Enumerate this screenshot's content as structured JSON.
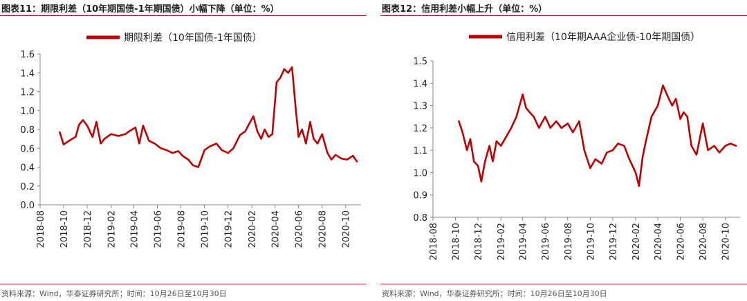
{
  "colors": {
    "line": "#c00000",
    "accent": "#b22222",
    "axis": "#888888"
  },
  "panels": [
    {
      "title": "图表11：期限利差（10年期国债-1年期国债）小幅下降（单位：%）",
      "source": "资料来源：Wind，华泰证券研究所；时间：10月26日至10月30日"
    },
    {
      "title": "图表12：信用利差小幅上升（单位：%）",
      "source": "资料来源：Wind，华泰证券研究所；时间：10月26日至10月30日"
    }
  ],
  "chart_data": [
    {
      "type": "line",
      "title": "",
      "xlabel": "",
      "ylabel": "",
      "x_type": "date",
      "xlim": [
        "2018-08-01",
        "2020-11-10"
      ],
      "ylim": [
        0.0,
        1.6
      ],
      "x_ticks": [
        "2018-08",
        "2018-10",
        "2018-12",
        "2019-02",
        "2019-04",
        "2019-06",
        "2019-08",
        "2019-10",
        "2019-12",
        "2020-02",
        "2020-04",
        "2020-06",
        "2020-08",
        "2020-10"
      ],
      "y_ticks": [
        "0.0",
        "0.2",
        "0.4",
        "0.6",
        "0.8",
        "1.0",
        "1.2",
        "1.4",
        "1.6"
      ],
      "legend_position": "top-center",
      "grid": false,
      "series": [
        {
          "name": "期限利差（10年国债-1年国债）",
          "x": [
            "2018-09-21",
            "2018-10-01",
            "2018-10-15",
            "2018-11-01",
            "2018-11-10",
            "2018-11-20",
            "2018-12-01",
            "2018-12-15",
            "2018-12-25",
            "2019-01-05",
            "2019-01-15",
            "2019-02-01",
            "2019-02-20",
            "2019-03-10",
            "2019-03-20",
            "2019-04-05",
            "2019-04-15",
            "2019-04-25",
            "2019-05-10",
            "2019-05-25",
            "2019-06-10",
            "2019-06-25",
            "2019-07-10",
            "2019-07-25",
            "2019-08-05",
            "2019-08-20",
            "2019-09-01",
            "2019-09-15",
            "2019-10-01",
            "2019-10-15",
            "2019-11-01",
            "2019-11-15",
            "2019-12-01",
            "2019-12-15",
            "2020-01-01",
            "2020-01-15",
            "2020-01-25",
            "2020-02-05",
            "2020-02-15",
            "2020-02-25",
            "2020-03-05",
            "2020-03-15",
            "2020-03-25",
            "2020-04-05",
            "2020-04-15",
            "2020-04-25",
            "2020-05-05",
            "2020-05-15",
            "2020-05-25",
            "2020-06-01",
            "2020-06-10",
            "2020-06-20",
            "2020-07-01",
            "2020-07-10",
            "2020-07-20",
            "2020-08-01",
            "2020-08-15",
            "2020-08-25",
            "2020-09-05",
            "2020-09-20",
            "2020-10-05",
            "2020-10-20",
            "2020-10-30"
          ],
          "values": [
            0.77,
            0.64,
            0.68,
            0.72,
            0.85,
            0.9,
            0.84,
            0.72,
            0.88,
            0.65,
            0.7,
            0.75,
            0.73,
            0.75,
            0.78,
            0.82,
            0.65,
            0.84,
            0.68,
            0.65,
            0.6,
            0.58,
            0.55,
            0.57,
            0.52,
            0.48,
            0.42,
            0.4,
            0.58,
            0.62,
            0.65,
            0.58,
            0.55,
            0.6,
            0.74,
            0.78,
            0.86,
            0.94,
            0.78,
            0.7,
            0.8,
            0.72,
            0.75,
            1.3,
            1.35,
            1.44,
            1.4,
            1.46,
            1.0,
            0.72,
            0.8,
            0.65,
            0.88,
            0.7,
            0.65,
            0.75,
            0.55,
            0.48,
            0.53,
            0.49,
            0.48,
            0.52,
            0.46
          ]
        }
      ]
    },
    {
      "type": "line",
      "title": "",
      "xlabel": "",
      "ylabel": "",
      "x_type": "date",
      "xlim": [
        "2018-08-01",
        "2020-11-10"
      ],
      "ylim": [
        0.8,
        1.5
      ],
      "x_ticks": [
        "2018-08",
        "2018-10",
        "2018-12",
        "2019-02",
        "2019-04",
        "2019-06",
        "2019-08",
        "2019-10",
        "2019-12",
        "2020-02",
        "2020-04",
        "2020-06",
        "2020-08",
        "2020-10"
      ],
      "y_ticks": [
        "0.8",
        "0.9",
        "1.0",
        "1.1",
        "1.2",
        "1.3",
        "1.4",
        "1.5"
      ],
      "legend_position": "top-center",
      "grid": false,
      "series": [
        {
          "name": "信用利差（10年期AAA企业债-10年期国债）",
          "x": [
            "2018-10-10",
            "2018-10-20",
            "2018-11-01",
            "2018-11-10",
            "2018-11-20",
            "2018-12-01",
            "2018-12-10",
            "2018-12-20",
            "2019-01-01",
            "2019-01-10",
            "2019-01-20",
            "2019-02-01",
            "2019-02-15",
            "2019-03-01",
            "2019-03-15",
            "2019-04-01",
            "2019-04-10",
            "2019-04-20",
            "2019-05-01",
            "2019-05-15",
            "2019-06-01",
            "2019-06-15",
            "2019-07-01",
            "2019-07-15",
            "2019-08-01",
            "2019-08-15",
            "2019-09-01",
            "2019-09-15",
            "2019-10-01",
            "2019-10-15",
            "2019-11-01",
            "2019-11-15",
            "2019-12-01",
            "2019-12-15",
            "2020-01-01",
            "2020-01-15",
            "2020-02-01",
            "2020-02-10",
            "2020-02-20",
            "2020-03-01",
            "2020-03-15",
            "2020-04-01",
            "2020-04-15",
            "2020-05-01",
            "2020-05-10",
            "2020-05-20",
            "2020-06-01",
            "2020-06-10",
            "2020-06-20",
            "2020-07-01",
            "2020-07-15",
            "2020-08-01",
            "2020-08-15",
            "2020-09-01",
            "2020-09-15",
            "2020-10-01",
            "2020-10-15",
            "2020-10-30"
          ],
          "values": [
            1.23,
            1.18,
            1.1,
            1.15,
            1.05,
            1.03,
            0.96,
            1.05,
            1.12,
            1.05,
            1.14,
            1.12,
            1.16,
            1.2,
            1.25,
            1.35,
            1.29,
            1.27,
            1.25,
            1.2,
            1.25,
            1.2,
            1.23,
            1.2,
            1.22,
            1.18,
            1.23,
            1.1,
            1.02,
            1.06,
            1.04,
            1.09,
            1.1,
            1.13,
            1.12,
            1.06,
            1.0,
            0.94,
            1.07,
            1.15,
            1.25,
            1.3,
            1.39,
            1.33,
            1.3,
            1.33,
            1.24,
            1.27,
            1.25,
            1.12,
            1.08,
            1.22,
            1.1,
            1.12,
            1.09,
            1.12,
            1.13,
            1.12
          ]
        }
      ]
    }
  ]
}
